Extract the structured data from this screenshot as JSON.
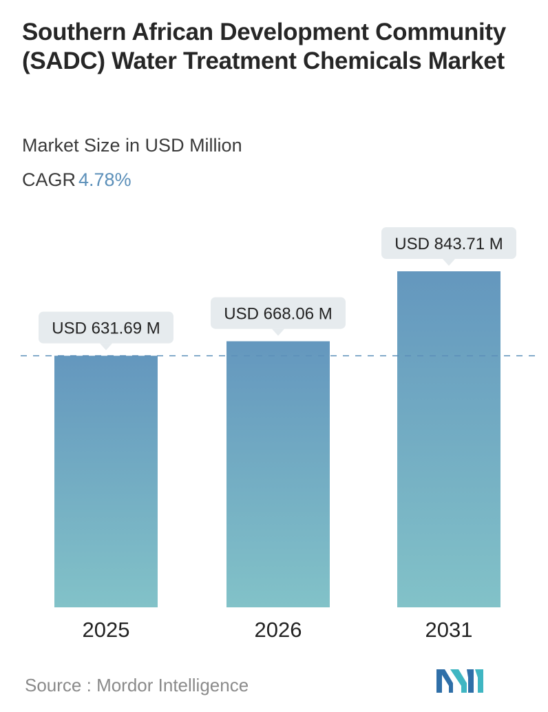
{
  "header": {
    "title": "Southern African Development Community (SADC) Water Treatment Chemicals Market",
    "subtitle": "Market Size in USD Million",
    "cagr_label": "CAGR",
    "cagr_value": "4.78%"
  },
  "chart_data": {
    "type": "bar",
    "title": "Southern African Development Community (SADC) Water Treatment Chemicals Market",
    "subtitle": "Market Size in USD Million",
    "categories": [
      "2025",
      "2026",
      "2031"
    ],
    "values": [
      631.69,
      668.06,
      843.71
    ],
    "data_labels": [
      "USD 631.69 M",
      "USD 668.06 M",
      "USD 843.71 M"
    ],
    "reference_line": 631.69,
    "grid": false,
    "colors": {
      "bar_top": "#6497be",
      "bar_bottom": "#82c2c8",
      "label_bg": "#e6ebee",
      "reference_line": "#5b8fb9"
    }
  },
  "footer": {
    "source_label": "Source :",
    "source_name": "Mordor Intelligence",
    "logo": "mordor-intelligence-logo",
    "logo_colors": [
      "#2f6fa8",
      "#3fb6c2"
    ]
  }
}
